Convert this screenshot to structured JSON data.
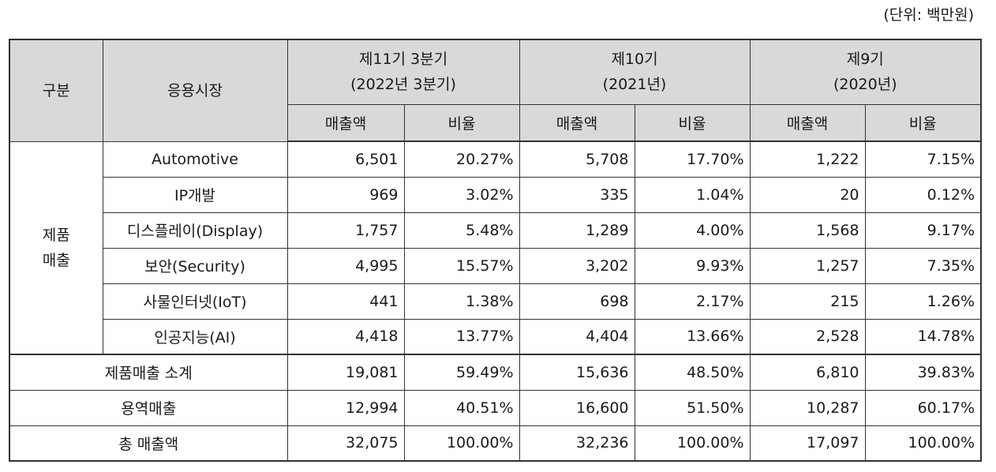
{
  "unit": "(단위: 백만원)",
  "header": {
    "col_category": "구분",
    "col_market": "응용시장",
    "periods": [
      {
        "line1": "제11기 3분기",
        "line2": "(2022년 3분기)"
      },
      {
        "line1": "제10기",
        "line2": "(2021년)"
      },
      {
        "line1": "제9기",
        "line2": "(2020년)"
      }
    ],
    "sub_sales": "매출액",
    "sub_ratio": "비율"
  },
  "product_group": {
    "label_line1": "제품",
    "label_line2": "매출",
    "rows": [
      {
        "market": "Automotive",
        "values": [
          "6,501",
          "20.27%",
          "5,708",
          "17.70%",
          "1,222",
          "7.15%"
        ]
      },
      {
        "market": "IP개발",
        "values": [
          "969",
          "3.02%",
          "335",
          "1.04%",
          "20",
          "0.12%"
        ]
      },
      {
        "market": "디스플레이(Display)",
        "values": [
          "1,757",
          "5.48%",
          "1,289",
          "4.00%",
          "1,568",
          "9.17%"
        ]
      },
      {
        "market": "보안(Security)",
        "values": [
          "4,995",
          "15.57%",
          "3,202",
          "9.93%",
          "1,257",
          "7.35%"
        ]
      },
      {
        "market": "사물인터넷(IoT)",
        "values": [
          "441",
          "1.38%",
          "698",
          "2.17%",
          "215",
          "1.26%"
        ]
      },
      {
        "market": "인공지능(AI)",
        "values": [
          "4,418",
          "13.77%",
          "4,404",
          "13.66%",
          "2,528",
          "14.78%"
        ]
      }
    ]
  },
  "summary_rows": [
    {
      "label": "제품매출 소계",
      "values": [
        "19,081",
        "59.49%",
        "15,636",
        "48.50%",
        "6,810",
        "39.83%"
      ]
    },
    {
      "label": "용역매출",
      "values": [
        "12,994",
        "40.51%",
        "16,600",
        "51.50%",
        "10,287",
        "60.17%"
      ]
    },
    {
      "label": "총 매출액",
      "values": [
        "32,075",
        "100.00%",
        "32,236",
        "100.00%",
        "17,097",
        "100.00%"
      ]
    }
  ]
}
